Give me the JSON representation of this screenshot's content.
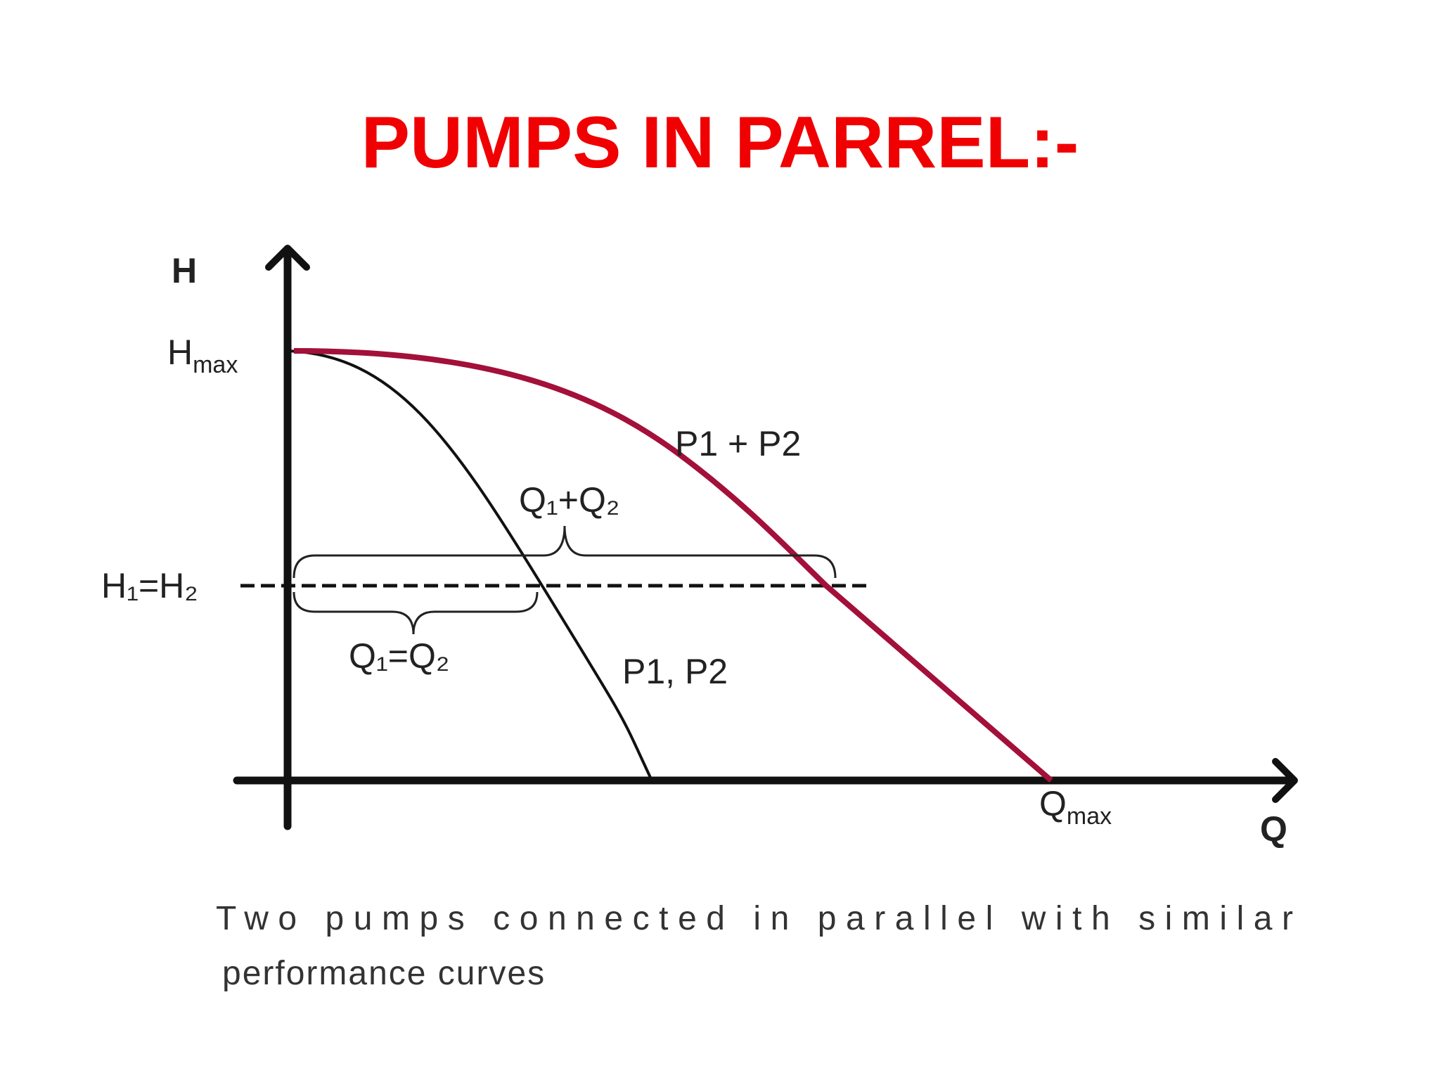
{
  "title": "PUMPS IN PARREL:-",
  "diagram": {
    "y_axis_label": "H",
    "x_axis_label": "Q",
    "h_max": {
      "main": "H",
      "sub": "max"
    },
    "q_max": {
      "main": "Q",
      "sub": "max"
    },
    "h_equal": "H₁=H₂",
    "q_sum": "Q₁+Q₂",
    "q_equal": "Q₁=Q₂",
    "combined_curve_label": "P1 + P2",
    "single_curve_label": "P1, P2"
  },
  "caption": {
    "line1": "Two pumps connected in parallel with similar",
    "line2": "performance curves"
  }
}
